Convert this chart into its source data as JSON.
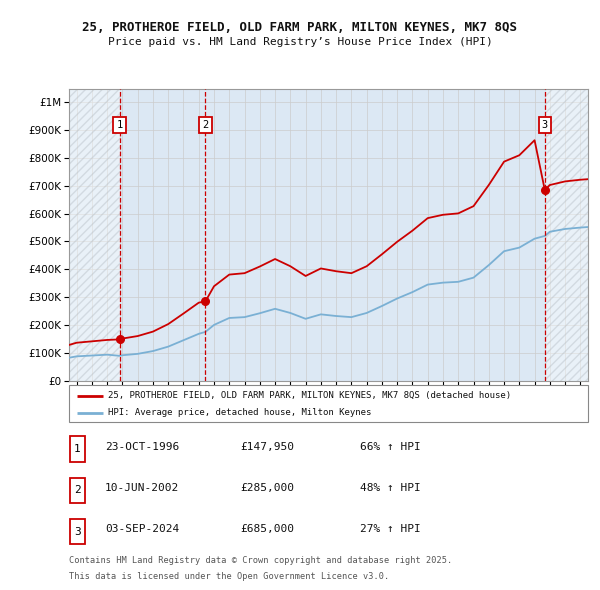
{
  "title_line1": "25, PROTHEROE FIELD, OLD FARM PARK, MILTON KEYNES, MK7 8QS",
  "title_line2": "Price paid vs. HM Land Registry’s House Price Index (HPI)",
  "sales": [
    {
      "num": 1,
      "date_str": "23-OCT-1996",
      "date_num": 1996.81,
      "price": 147950,
      "pct": "66% ↑ HPI"
    },
    {
      "num": 2,
      "date_str": "10-JUN-2002",
      "date_num": 2002.44,
      "price": 285000,
      "pct": "48% ↑ HPI"
    },
    {
      "num": 3,
      "date_str": "03-SEP-2024",
      "date_num": 2024.67,
      "price": 685000,
      "pct": "27% ↑ HPI"
    }
  ],
  "legend_line1": "25, PROTHEROE FIELD, OLD FARM PARK, MILTON KEYNES, MK7 8QS (detached house)",
  "legend_line2": "HPI: Average price, detached house, Milton Keynes",
  "footnote_line1": "Contains HM Land Registry data © Crown copyright and database right 2025.",
  "footnote_line2": "This data is licensed under the Open Government Licence v3.0.",
  "xmin": 1993.5,
  "xmax": 2027.5,
  "ymin": 0,
  "ymax": 1050000,
  "red_color": "#cc0000",
  "blue_color": "#7ab0d4",
  "grid_color": "#cccccc",
  "plot_bg": "#dce8f4",
  "hpi_points": [
    [
      1993.5,
      82000
    ],
    [
      1994,
      87000
    ],
    [
      1995,
      90000
    ],
    [
      1996,
      93000
    ],
    [
      1996.81,
      89000
    ],
    [
      1997,
      91000
    ],
    [
      1998,
      96000
    ],
    [
      1999,
      106000
    ],
    [
      2000,
      122000
    ],
    [
      2001,
      145000
    ],
    [
      2002,
      168000
    ],
    [
      2002.44,
      175000
    ],
    [
      2003,
      200000
    ],
    [
      2004,
      225000
    ],
    [
      2005,
      228000
    ],
    [
      2006,
      242000
    ],
    [
      2007,
      258000
    ],
    [
      2008,
      243000
    ],
    [
      2009,
      222000
    ],
    [
      2010,
      238000
    ],
    [
      2011,
      232000
    ],
    [
      2012,
      228000
    ],
    [
      2013,
      243000
    ],
    [
      2014,
      268000
    ],
    [
      2015,
      295000
    ],
    [
      2016,
      318000
    ],
    [
      2017,
      345000
    ],
    [
      2018,
      352000
    ],
    [
      2019,
      355000
    ],
    [
      2020,
      370000
    ],
    [
      2021,
      415000
    ],
    [
      2022,
      465000
    ],
    [
      2023,
      478000
    ],
    [
      2024,
      510000
    ],
    [
      2024.67,
      520000
    ],
    [
      2025,
      535000
    ],
    [
      2026,
      545000
    ],
    [
      2027,
      550000
    ],
    [
      2027.5,
      552000
    ]
  ],
  "red_points_seg1": [
    [
      1993.5,
      128000
    ],
    [
      1994,
      136000
    ],
    [
      1995,
      141000
    ],
    [
      1996,
      146000
    ],
    [
      1996.81,
      147950
    ]
  ],
  "red_points_seg2": [
    [
      1996.81,
      147950
    ],
    [
      1997,
      151000
    ],
    [
      1998,
      160000
    ],
    [
      1999,
      176000
    ],
    [
      2000,
      203000
    ],
    [
      2001,
      241000
    ],
    [
      2002,
      280000
    ],
    [
      2002.44,
      285000
    ]
  ],
  "red_points_seg3": [
    [
      2002.44,
      285000
    ],
    [
      2003,
      339000
    ],
    [
      2004,
      381000
    ],
    [
      2005,
      386000
    ],
    [
      2006,
      410000
    ],
    [
      2007,
      437000
    ],
    [
      2008,
      411000
    ],
    [
      2009,
      376000
    ],
    [
      2010,
      403000
    ],
    [
      2011,
      393000
    ],
    [
      2012,
      386000
    ],
    [
      2013,
      411000
    ],
    [
      2014,
      454000
    ],
    [
      2015,
      499000
    ],
    [
      2016,
      539000
    ],
    [
      2017,
      584000
    ],
    [
      2018,
      596000
    ],
    [
      2019,
      601000
    ],
    [
      2020,
      627000
    ],
    [
      2021,
      703000
    ],
    [
      2022,
      787000
    ],
    [
      2023,
      810000
    ],
    [
      2024,
      864000
    ],
    [
      2024.67,
      685000
    ]
  ],
  "red_points_seg4": [
    [
      2024.67,
      685000
    ],
    [
      2025,
      703000
    ],
    [
      2026,
      716000
    ],
    [
      2027,
      722000
    ],
    [
      2027.5,
      724000
    ]
  ]
}
